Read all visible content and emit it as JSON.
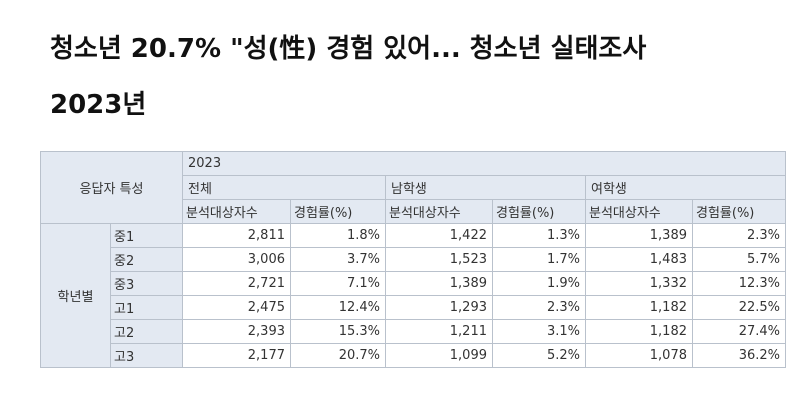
{
  "header": {
    "title": "청소년 20.7% \"성(性) 경험 있어... 청소년 실태조사",
    "subtitle": "2023년"
  },
  "table": {
    "corner": "응답자 특성",
    "year": "2023",
    "groups": [
      "전체",
      "남학생",
      "여학생"
    ],
    "subheaders": [
      "분석대상자수",
      "경험률(%)",
      "분석대상자수",
      "경험률(%)",
      "분석대상자수",
      "경험률(%)"
    ],
    "row_group": "학년별",
    "rows": [
      {
        "label": "중1",
        "cells": [
          "2,811",
          "1.8%",
          "1,422",
          "1.3%",
          "1,389",
          "2.3%"
        ]
      },
      {
        "label": "중2",
        "cells": [
          "3,006",
          "3.7%",
          "1,523",
          "1.7%",
          "1,483",
          "5.7%"
        ]
      },
      {
        "label": "중3",
        "cells": [
          "2,721",
          "7.1%",
          "1,389",
          "1.9%",
          "1,332",
          "12.3%"
        ]
      },
      {
        "label": "고1",
        "cells": [
          "2,475",
          "12.4%",
          "1,293",
          "2.3%",
          "1,182",
          "22.5%"
        ]
      },
      {
        "label": "고2",
        "cells": [
          "2,393",
          "15.3%",
          "1,211",
          "3.1%",
          "1,182",
          "27.4%"
        ]
      },
      {
        "label": "고3",
        "cells": [
          "2,177",
          "20.7%",
          "1,099",
          "5.2%",
          "1,078",
          "36.2%"
        ]
      }
    ]
  }
}
